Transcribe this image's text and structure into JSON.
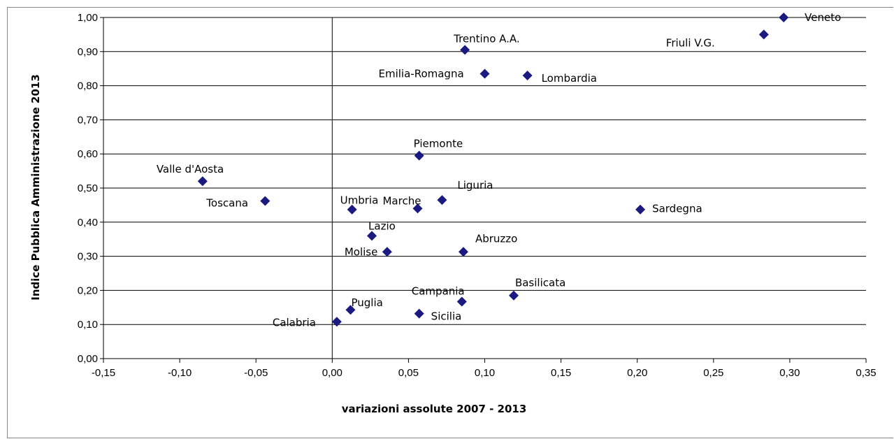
{
  "chart_data": {
    "type": "scatter",
    "xlabel": "variazioni assolute 2007  - 2013",
    "ylabel": "Indice Pubblica Amministrazione 2013",
    "xlim": [
      -0.15,
      0.35
    ],
    "ylim": [
      0.0,
      1.0
    ],
    "x_ticks": [
      "-0,15",
      "-0,10",
      "-0,05",
      "0,00",
      "0,05",
      "0,10",
      "0,15",
      "0,20",
      "0,25",
      "0,30",
      "0,35"
    ],
    "y_ticks": [
      "0,00",
      "0,10",
      "0,20",
      "0,30",
      "0,40",
      "0,50",
      "0,60",
      "0,70",
      "0,80",
      "0,90",
      "1,00"
    ],
    "grid": "horizontal",
    "marker": "diamond",
    "marker_color": "#1a1a80",
    "points": [
      {
        "label": "Veneto",
        "x": 0.296,
        "y": 1.0
      },
      {
        "label": "Friuli V.G.",
        "x": 0.283,
        "y": 0.95
      },
      {
        "label": "Trentino A.A.",
        "x": 0.087,
        "y": 0.905
      },
      {
        "label": "Emilia-Romagna",
        "x": 0.1,
        "y": 0.835
      },
      {
        "label": "Lombardia",
        "x": 0.128,
        "y": 0.83
      },
      {
        "label": "Piemonte",
        "x": 0.057,
        "y": 0.595
      },
      {
        "label": "Valle d'Aosta",
        "x": -0.085,
        "y": 0.52
      },
      {
        "label": "Toscana",
        "x": -0.044,
        "y": 0.462
      },
      {
        "label": "Liguria",
        "x": 0.072,
        "y": 0.465
      },
      {
        "label": "Umbria",
        "x": 0.013,
        "y": 0.437
      },
      {
        "label": "Marche",
        "x": 0.056,
        "y": 0.44
      },
      {
        "label": "Sardegna",
        "x": 0.202,
        "y": 0.437
      },
      {
        "label": "Lazio",
        "x": 0.026,
        "y": 0.36
      },
      {
        "label": "Molise",
        "x": 0.036,
        "y": 0.313
      },
      {
        "label": "Abruzzo",
        "x": 0.086,
        "y": 0.313
      },
      {
        "label": "Basilicata",
        "x": 0.119,
        "y": 0.185
      },
      {
        "label": "Campania",
        "x": 0.085,
        "y": 0.167
      },
      {
        "label": "Puglia",
        "x": 0.012,
        "y": 0.143
      },
      {
        "label": "Sicilia",
        "x": 0.057,
        "y": 0.132
      },
      {
        "label": "Calabria",
        "x": 0.003,
        "y": 0.108
      }
    ]
  }
}
